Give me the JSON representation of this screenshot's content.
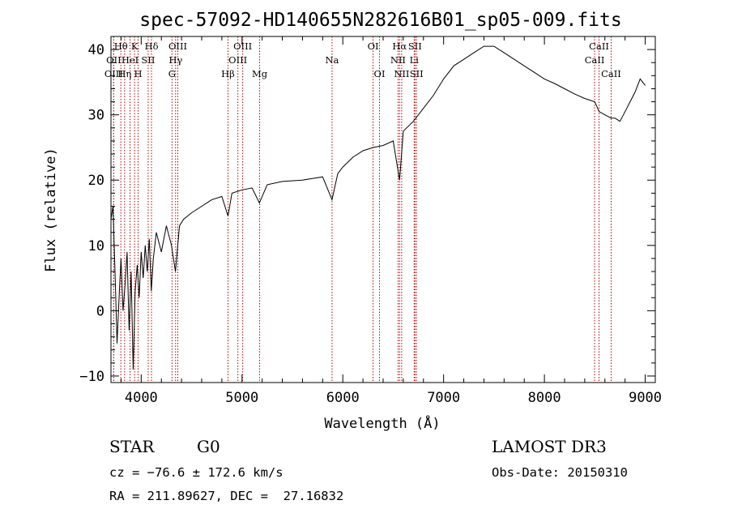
{
  "chart_data": {
    "type": "line",
    "title": "spec-57092-HD140655N282616B01_sp05-009.fits",
    "xlabel": "Wavelength (Å)",
    "ylabel": "Flux (relative)",
    "xlim": [
      3700,
      9100
    ],
    "ylim": [
      -11,
      42
    ],
    "xticks": [
      4000,
      5000,
      6000,
      7000,
      8000,
      9000
    ],
    "yticks": [
      -10,
      0,
      10,
      20,
      30,
      40
    ],
    "xtick_labels": [
      "4000",
      "5000",
      "6000",
      "7000",
      "8000",
      "9000"
    ],
    "ytick_labels": [
      "−10",
      "0",
      "10",
      "20",
      "30",
      "40"
    ],
    "series": [
      {
        "name": "flux",
        "points": [
          [
            3700,
            14
          ],
          [
            3720,
            16
          ],
          [
            3740,
            6
          ],
          [
            3760,
            -5
          ],
          [
            3780,
            2
          ],
          [
            3800,
            8
          ],
          [
            3820,
            0
          ],
          [
            3840,
            4
          ],
          [
            3860,
            9
          ],
          [
            3880,
            -3
          ],
          [
            3900,
            6
          ],
          [
            3920,
            -9
          ],
          [
            3940,
            3
          ],
          [
            3960,
            7
          ],
          [
            3980,
            2
          ],
          [
            4000,
            9
          ],
          [
            4020,
            5
          ],
          [
            4040,
            10
          ],
          [
            4060,
            6
          ],
          [
            4080,
            11
          ],
          [
            4100,
            3
          ],
          [
            4120,
            8
          ],
          [
            4150,
            12
          ],
          [
            4200,
            9
          ],
          [
            4250,
            13
          ],
          [
            4300,
            10
          ],
          [
            4340,
            6
          ],
          [
            4380,
            13
          ],
          [
            4420,
            14
          ],
          [
            4500,
            15
          ],
          [
            4600,
            16
          ],
          [
            4700,
            17
          ],
          [
            4800,
            17.5
          ],
          [
            4861,
            14.5
          ],
          [
            4900,
            18
          ],
          [
            5000,
            18.5
          ],
          [
            5100,
            18.8
          ],
          [
            5172,
            16.5
          ],
          [
            5250,
            19.3
          ],
          [
            5400,
            19.8
          ],
          [
            5600,
            20
          ],
          [
            5800,
            20.5
          ],
          [
            5893,
            17
          ],
          [
            5950,
            21
          ],
          [
            6000,
            22
          ],
          [
            6100,
            23.5
          ],
          [
            6200,
            24.5
          ],
          [
            6300,
            25
          ],
          [
            6400,
            25.3
          ],
          [
            6500,
            26
          ],
          [
            6563,
            20
          ],
          [
            6600,
            27.5
          ],
          [
            6700,
            29
          ],
          [
            6800,
            31
          ],
          [
            6900,
            33
          ],
          [
            7000,
            35.5
          ],
          [
            7100,
            37.5
          ],
          [
            7200,
            38.5
          ],
          [
            7300,
            39.5
          ],
          [
            7400,
            40.5
          ],
          [
            7500,
            40.5
          ],
          [
            7600,
            39.5
          ],
          [
            7700,
            38.5
          ],
          [
            7800,
            37.5
          ],
          [
            7900,
            36.5
          ],
          [
            8000,
            35.5
          ],
          [
            8100,
            34.8
          ],
          [
            8200,
            34
          ],
          [
            8300,
            33.2
          ],
          [
            8400,
            32.5
          ],
          [
            8500,
            32
          ],
          [
            8542,
            30.5
          ],
          [
            8600,
            30
          ],
          [
            8662,
            29.5
          ],
          [
            8700,
            29.5
          ],
          [
            8750,
            29
          ],
          [
            8800,
            30.5
          ],
          [
            8850,
            32
          ],
          [
            8900,
            33.5
          ],
          [
            8950,
            35.5
          ],
          [
            9000,
            34.5
          ]
        ]
      }
    ],
    "spectral_lines": [
      {
        "name": "Hθ",
        "x": 3798,
        "row": 1
      },
      {
        "name": "OII",
        "x": 3727,
        "row": 2
      },
      {
        "name": "OIII",
        "x": 3727,
        "row": 3
      },
      {
        "name": "K",
        "x": 3934,
        "row": 1
      },
      {
        "name": "HeI",
        "x": 3889,
        "row": 2
      },
      {
        "name": "Hη",
        "x": 3835,
        "row": 3
      },
      {
        "name": "H",
        "x": 3969,
        "row": 3
      },
      {
        "name": "Hδ",
        "x": 4102,
        "row": 1
      },
      {
        "name": "SII",
        "x": 4069,
        "row": 2
      },
      {
        "name": "OIII",
        "x": 4363,
        "row": 1
      },
      {
        "name": "Hγ",
        "x": 4341,
        "row": 2
      },
      {
        "name": "G",
        "x": 4305,
        "row": 3
      },
      {
        "name": "OIII",
        "x": 5007,
        "row": 1
      },
      {
        "name": "OIII",
        "x": 4959,
        "row": 2
      },
      {
        "name": "Hβ",
        "x": 4861,
        "row": 3
      },
      {
        "name": "Mg",
        "x": 5175,
        "row": 3
      },
      {
        "name": "Na",
        "x": 5893,
        "row": 2
      },
      {
        "name": "OI",
        "x": 6300,
        "row": 1
      },
      {
        "name": "OI",
        "x": 6364,
        "row": 3
      },
      {
        "name": "Hα",
        "x": 6563,
        "row": 1
      },
      {
        "name": "NII",
        "x": 6548,
        "row": 2
      },
      {
        "name": "NII",
        "x": 6584,
        "row": 3
      },
      {
        "name": "SII",
        "x": 6716,
        "row": 1
      },
      {
        "name": "Li",
        "x": 6708,
        "row": 2
      },
      {
        "name": "SII",
        "x": 6731,
        "row": 3
      },
      {
        "name": "CaII",
        "x": 8542,
        "row": 1
      },
      {
        "name": "CaII",
        "x": 8498,
        "row": 2
      },
      {
        "name": "CaII",
        "x": 8662,
        "row": 3
      }
    ]
  },
  "info": {
    "object_type": "STAR",
    "subclass": "G0",
    "survey": "LAMOST DR3",
    "cz": "cz = −76.6 ± 172.6 km/s",
    "obs_date": "Obs-Date: 20150310",
    "coords": "RA = 211.89627, DEC =  27.16832"
  },
  "colors": {
    "line": "#000000",
    "marker": "#b30000",
    "background": "#ffffff"
  }
}
